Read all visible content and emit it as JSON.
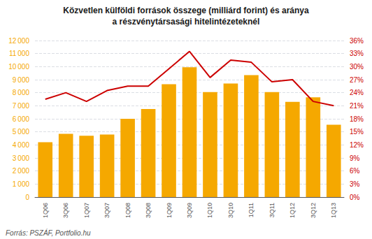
{
  "chart_data": {
    "type": "bar",
    "title": "Közvetlen külföldi források összege (milliárd forint) és aránya",
    "subtitle": "a részvénytársasági hitelintézeteknél",
    "annotations": [
      "Forrás: PSZÁF, Portfolio.hu"
    ],
    "categories": [
      "1Q06",
      "3Q06",
      "1Q07",
      "3Q07",
      "1Q08",
      "3Q08",
      "1Q09",
      "3Q09",
      "1Q10",
      "3Q10",
      "1Q11",
      "3Q11",
      "1Q12",
      "3Q12",
      "1Q13"
    ],
    "series": [
      {
        "type": "bar",
        "color": "#F5A800",
        "values": [
          4200,
          4850,
          4700,
          4800,
          6000,
          6750,
          8650,
          9950,
          8050,
          8700,
          9350,
          8050,
          7300,
          7650,
          5550
        ]
      },
      {
        "type": "line",
        "color": "#CC0000",
        "axis": "y2",
        "values": [
          22.5,
          24.0,
          22.0,
          24.5,
          25.5,
          25.5,
          29.5,
          33.5,
          27.5,
          31.5,
          31.0,
          26.5,
          27.0,
          22.0,
          21.0
        ]
      }
    ],
    "ylim": [
      0,
      12000
    ],
    "yticks": [
      0,
      {
        "value": 1000,
        "label": "1 000"
      },
      {
        "value": 2000,
        "label": "2 000"
      },
      {
        "value": 3000,
        "label": "3 000"
      },
      {
        "value": 4000,
        "label": "4 000"
      },
      {
        "value": 5000,
        "label": "5 000"
      },
      {
        "value": 6000,
        "label": "6 000"
      },
      {
        "value": 7000,
        "label": "7 000"
      },
      {
        "value": 8000,
        "label": "8 000"
      },
      {
        "value": 9000,
        "label": "9 000"
      },
      {
        "value": 10000,
        "label": "10 000"
      },
      {
        "value": 11000,
        "label": "11 000"
      },
      {
        "value": 12000,
        "label": "12 000"
      }
    ],
    "y2lim": [
      0,
      36
    ],
    "y2ticks": [
      {
        "value": 0,
        "label": "0%"
      },
      {
        "value": 3,
        "label": "3%"
      },
      {
        "value": 6,
        "label": "6%"
      },
      {
        "value": 9,
        "label": "9%"
      },
      {
        "value": 12,
        "label": "12%"
      },
      {
        "value": 15,
        "label": "15%"
      },
      {
        "value": 18,
        "label": "18%"
      },
      {
        "value": 21,
        "label": "21%"
      },
      {
        "value": 24,
        "label": "24%"
      },
      {
        "value": 27,
        "label": "27%"
      },
      {
        "value": 30,
        "label": "30%"
      },
      {
        "value": 33,
        "label": "33%"
      },
      {
        "value": 36,
        "label": "36%"
      }
    ],
    "grid": true
  }
}
